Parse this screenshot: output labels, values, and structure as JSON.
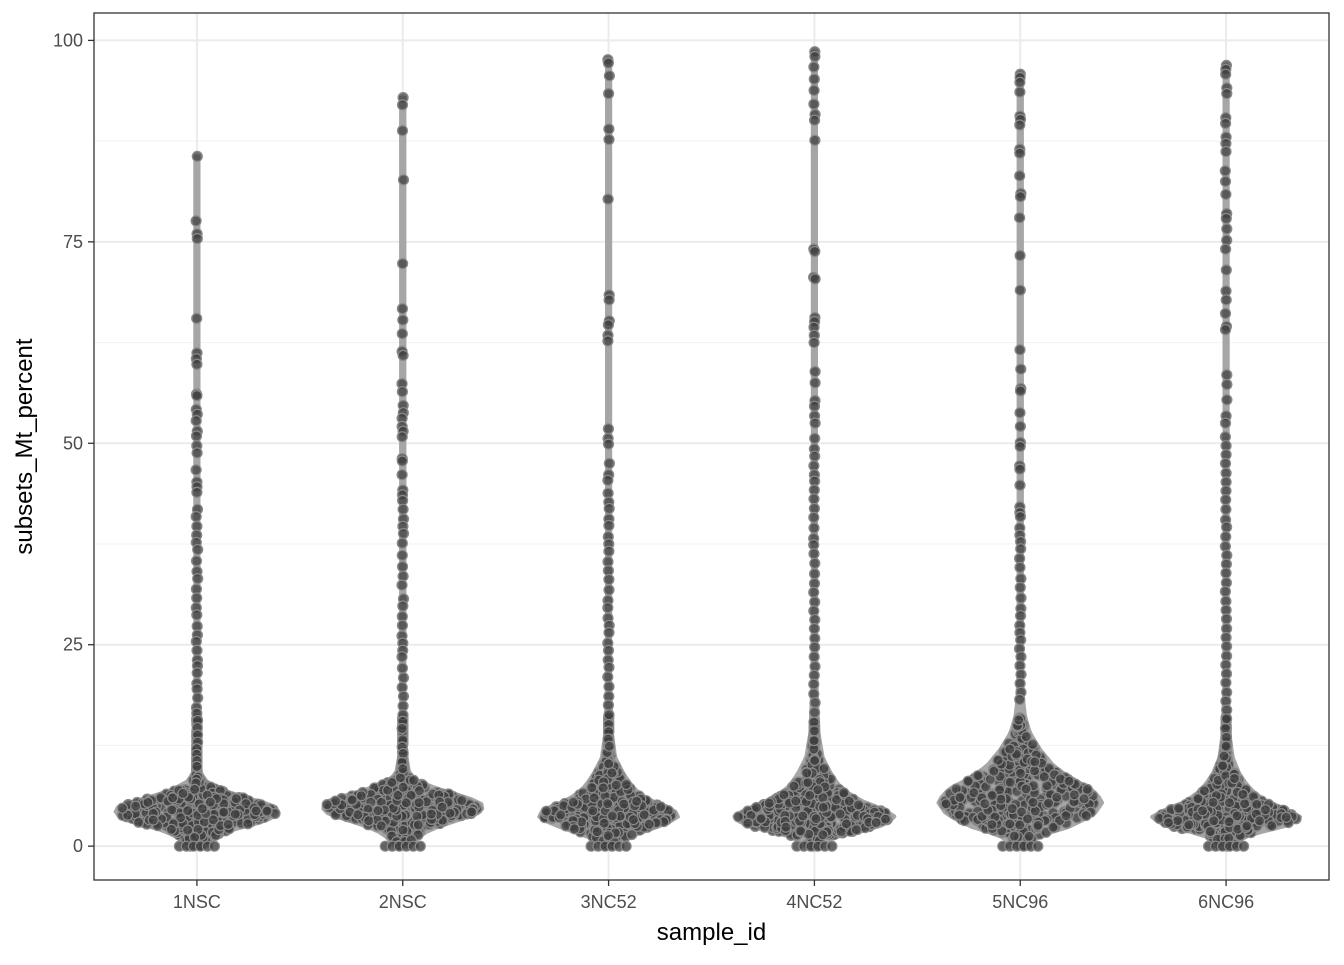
{
  "chart_data": {
    "type": "violin",
    "xlabel": "sample_id",
    "ylabel": "subsets_Mt_percent",
    "categories": [
      "1NSC",
      "2NSC",
      "3NC52",
      "4NC52",
      "5NC96",
      "6NC96"
    ],
    "yticks": [
      0,
      25,
      50,
      75,
      100
    ],
    "ylim": [
      -4.2,
      103.4
    ],
    "grid": true,
    "colors": {
      "violin_fill": "#a6a6a6",
      "point_fill": "#3f3f3f",
      "point_stroke": "#8a8a8a",
      "panel_border": "#333333",
      "gridline": "#ebebeb"
    },
    "series": [
      {
        "category": "1NSC",
        "max": 85.6,
        "density": [
          [
            0,
            0.14
          ],
          [
            1,
            0.22
          ],
          [
            2,
            0.42
          ],
          [
            3,
            0.8
          ],
          [
            4,
            1.0
          ],
          [
            5,
            0.95
          ],
          [
            6,
            0.6
          ],
          [
            7,
            0.3
          ],
          [
            8,
            0.12
          ],
          [
            9,
            0.05
          ],
          [
            12,
            0.02
          ],
          [
            20,
            0.012
          ],
          [
            40,
            0.01
          ],
          [
            60,
            0.008
          ],
          [
            85.6,
            0.006
          ]
        ],
        "outliers": [
          85.6,
          77.6,
          76.0,
          75.4,
          65.5,
          61.2,
          60.5,
          59.8,
          56.1,
          55.9,
          54.2,
          53.6,
          52.8,
          51.5,
          50.9,
          49.7,
          48.8,
          46.7,
          45.2,
          44.6,
          43.9,
          41.8,
          40.9,
          39.7,
          38.6,
          37.7,
          36.8,
          35.4,
          34.1,
          33.2,
          31.9,
          30.8,
          29.6,
          28.7,
          27.3,
          26.2,
          25.4,
          24.3,
          23.1,
          22.4,
          21.5,
          20.2,
          19.5,
          18.4,
          17.2,
          16.5,
          15.6,
          14.7,
          13.8,
          12.9,
          12.1,
          11.4,
          10.6,
          9.9
        ]
      },
      {
        "category": "2NSC",
        "max": 92.9,
        "density": [
          [
            0,
            0.1
          ],
          [
            1,
            0.18
          ],
          [
            2,
            0.32
          ],
          [
            3,
            0.6
          ],
          [
            4,
            0.9
          ],
          [
            5,
            1.0
          ],
          [
            6,
            0.8
          ],
          [
            7,
            0.45
          ],
          [
            8,
            0.2
          ],
          [
            9,
            0.08
          ],
          [
            12,
            0.03
          ],
          [
            20,
            0.015
          ],
          [
            40,
            0.012
          ],
          [
            60,
            0.01
          ],
          [
            92.9,
            0.006
          ]
        ],
        "outliers": [
          92.9,
          92.0,
          88.8,
          82.7,
          72.3,
          66.7,
          65.3,
          63.6,
          61.4,
          60.9,
          57.4,
          56.4,
          54.7,
          53.8,
          53.1,
          52.1,
          51.5,
          50.8,
          48.1,
          47.8,
          46.1,
          44.2,
          43.6,
          42.9,
          41.8,
          40.6,
          39.7,
          38.8,
          37.6,
          36.1,
          34.7,
          33.5,
          32.4,
          30.7,
          29.8,
          28.5,
          27.4,
          26.1,
          25.2,
          24.3,
          23.5,
          22.1,
          20.9,
          19.7,
          18.6,
          17.4,
          16.3,
          15.5,
          14.6,
          13.2,
          12.3,
          11.5,
          10.4,
          9.6
        ]
      },
      {
        "category": "3NC52",
        "max": 97.6,
        "density": [
          [
            0,
            0.12
          ],
          [
            0.7,
            0.12
          ],
          [
            1.5,
            0.35
          ],
          [
            2.5,
            0.62
          ],
          [
            3.5,
            0.85
          ],
          [
            4.5,
            0.8
          ],
          [
            5.5,
            0.55
          ],
          [
            6.5,
            0.38
          ],
          [
            7.5,
            0.28
          ],
          [
            9,
            0.18
          ],
          [
            11,
            0.08
          ],
          [
            14,
            0.04
          ],
          [
            20,
            0.02
          ],
          [
            40,
            0.012
          ],
          [
            60,
            0.01
          ],
          [
            97.6,
            0.006
          ]
        ],
        "outliers": [
          97.6,
          97.2,
          95.6,
          93.4,
          89.0,
          87.7,
          80.3,
          68.4,
          67.8,
          65.2,
          64.7,
          63.4,
          62.7,
          51.8,
          50.6,
          49.9,
          47.5,
          46.1,
          45.4,
          43.8,
          42.7,
          41.9,
          40.6,
          39.8,
          38.4,
          37.5,
          36.6,
          35.3,
          34.2,
          33.1,
          31.8,
          30.5,
          29.6,
          28.3,
          27.4,
          26.5,
          25.2,
          24.3,
          23.1,
          22.2,
          21.0,
          19.8,
          18.6,
          17.5,
          16.3,
          15.1,
          14.2,
          13.3,
          12.4
        ]
      },
      {
        "category": "4NC52",
        "max": 98.6,
        "density": [
          [
            0,
            0.12
          ],
          [
            0.7,
            0.12
          ],
          [
            1.5,
            0.4
          ],
          [
            2.5,
            0.8
          ],
          [
            3.5,
            1.0
          ],
          [
            4.5,
            0.85
          ],
          [
            5.5,
            0.6
          ],
          [
            6.5,
            0.42
          ],
          [
            7.5,
            0.3
          ],
          [
            9,
            0.2
          ],
          [
            11,
            0.1
          ],
          [
            14,
            0.05
          ],
          [
            20,
            0.025
          ],
          [
            40,
            0.015
          ],
          [
            60,
            0.012
          ],
          [
            98.6,
            0.006
          ]
        ],
        "outliers": [
          98.6,
          98.0,
          96.7,
          95.2,
          93.8,
          92.1,
          90.8,
          90.1,
          87.6,
          74.1,
          73.8,
          70.6,
          70.4,
          65.6,
          65.1,
          64.4,
          63.4,
          62.5,
          58.9,
          57.5,
          55.3,
          54.6,
          53.4,
          52.5,
          50.6,
          49.3,
          48.4,
          47.2,
          46.1,
          45.3,
          44.2,
          43.1,
          41.9,
          40.8,
          39.5,
          38.2,
          37.4,
          36.3,
          35.1,
          33.8,
          32.6,
          31.5,
          30.3,
          29.2,
          28.1,
          27.0,
          25.8,
          24.7,
          23.5,
          22.3,
          21.2,
          20.1,
          18.9,
          17.8,
          16.6,
          15.4,
          14.3,
          13.1
        ]
      },
      {
        "category": "5NC96",
        "max": 95.8,
        "density": [
          [
            0,
            0.14
          ],
          [
            0.7,
            0.14
          ],
          [
            1.5,
            0.3
          ],
          [
            2.5,
            0.62
          ],
          [
            4,
            0.9
          ],
          [
            5.5,
            1.0
          ],
          [
            7,
            0.88
          ],
          [
            8.5,
            0.6
          ],
          [
            10,
            0.4
          ],
          [
            12,
            0.24
          ],
          [
            14,
            0.12
          ],
          [
            16,
            0.06
          ],
          [
            18,
            0.035
          ],
          [
            22,
            0.02
          ],
          [
            40,
            0.014
          ],
          [
            60,
            0.01
          ],
          [
            95.8,
            0.006
          ]
        ],
        "outliers": [
          95.8,
          95.4,
          94.8,
          93.6,
          90.6,
          90.2,
          89.5,
          86.5,
          86.0,
          83.2,
          81.0,
          80.6,
          78.0,
          73.3,
          69.0,
          61.6,
          59.2,
          56.8,
          56.5,
          53.8,
          52.1,
          50.1,
          49.6,
          47.2,
          46.8,
          44.8,
          42.1,
          41.4,
          40.9,
          39.5,
          38.6,
          37.8,
          36.9,
          35.7,
          34.6,
          33.2,
          32.1,
          30.8,
          29.5,
          28.6,
          27.4,
          26.5,
          25.6,
          24.5,
          23.5,
          22.4,
          21.3,
          20.2,
          19.1,
          18.2
        ]
      },
      {
        "category": "6NC96",
        "max": 96.9,
        "density": [
          [
            0,
            0.14
          ],
          [
            0.7,
            0.14
          ],
          [
            1.5,
            0.32
          ],
          [
            2.5,
            0.72
          ],
          [
            3.5,
            0.92
          ],
          [
            4.5,
            0.75
          ],
          [
            5.5,
            0.5
          ],
          [
            6.5,
            0.36
          ],
          [
            7.5,
            0.26
          ],
          [
            9,
            0.16
          ],
          [
            11,
            0.08
          ],
          [
            14,
            0.04
          ],
          [
            20,
            0.022
          ],
          [
            40,
            0.015
          ],
          [
            60,
            0.012
          ],
          [
            96.9,
            0.006
          ]
        ],
        "outliers": [
          96.9,
          96.4,
          95.8,
          94.1,
          93.4,
          90.4,
          89.7,
          88.0,
          87.2,
          86.2,
          83.8,
          82.5,
          80.9,
          78.5,
          77.9,
          76.6,
          75.2,
          74.1,
          71.5,
          68.9,
          67.8,
          66.1,
          64.5,
          64.1,
          58.5,
          57.3,
          55.4,
          53.4,
          52.5,
          50.8,
          49.7,
          48.6,
          47.5,
          46.3,
          45.2,
          44.1,
          43.0,
          41.8,
          40.5,
          39.6,
          38.4,
          37.2,
          36.1,
          35.0,
          33.9,
          32.7,
          31.6,
          30.4,
          29.3,
          28.2,
          27.0,
          25.9,
          24.8,
          23.6,
          22.5,
          21.4,
          20.3,
          19.1,
          18.0,
          16.9,
          15.8,
          14.6,
          13.5,
          12.4
        ]
      }
    ]
  }
}
